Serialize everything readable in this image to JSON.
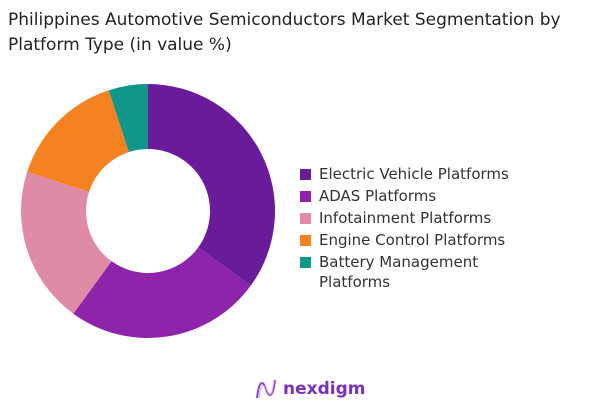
{
  "chart_data": {
    "type": "pie",
    "donut": true,
    "title": "Philippines Automotive Semiconductors Market Segmentation by Platform Type (in value %)",
    "categories": [
      "Electric Vehicle Platforms",
      "ADAS Platforms",
      "Infotainment Platforms",
      "Engine Control Platforms",
      "Battery Management Platforms"
    ],
    "values": [
      35,
      25,
      20,
      15,
      5
    ],
    "colors": [
      "#6a1b9a",
      "#8e24aa",
      "#df8aa6",
      "#f58220",
      "#11968a"
    ],
    "legend_position": "right"
  },
  "logo": {
    "text": "nexdigm"
  }
}
